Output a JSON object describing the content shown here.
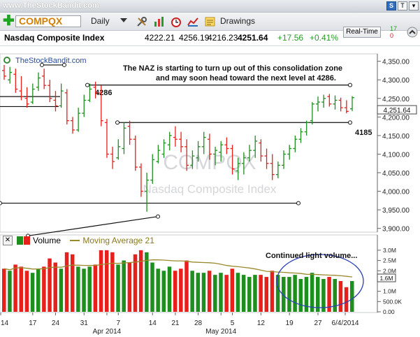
{
  "watermark": "www.TheStockBandit.com",
  "header_buttons": [
    "S",
    "T",
    "▾"
  ],
  "toolbar": {
    "symbol": "COMPQX",
    "period": "Daily",
    "drawings_label": "Drawings",
    "realtime_label": "Real-Time",
    "side_counts": [
      "17",
      "0"
    ]
  },
  "quote": {
    "name": "Nasdaq Composite Index",
    "open": "4222.21",
    "high": "4256.19",
    "low": "4216.23",
    "last": "4251.64",
    "change": "+17.56",
    "change_pct": "+0.41%"
  },
  "main_chart": {
    "source_label": "TheStockBandit.com",
    "annotation_line1": "The NAZ is starting to turn up out of this consolidation zone",
    "annotation_line2": "and may soon head toward the next level at 4286.",
    "level_upper_label": "4286",
    "level_lower_label": "4185",
    "price_tag": "4,251.64",
    "watermark_symbol": "COMPQX",
    "watermark_name": "Nasdaq Composite Index",
    "y_ticks": [
      "4,350.00",
      "4,300.00",
      "4,250.00",
      "4,200.00",
      "4,150.00",
      "4,100.00",
      "4,050.00",
      "4,000.00",
      "3,950.00",
      "3,900.00"
    ]
  },
  "volume_panel": {
    "title": "Volume",
    "ma_label": "Moving Average 21",
    "annotation": "Continued light volume...",
    "y_ticks": [
      "3.0M",
      "2.5M",
      "2.0M",
      "1.6M",
      "1.0M",
      "500.0K",
      "0.00"
    ],
    "highlight_tag": "1.6M",
    "colors": {
      "up": "#1e8f1e",
      "down": "#e8201c",
      "ma": "#9a8a2c",
      "circle": "#2c3fb8"
    }
  },
  "x_axis": {
    "labels": [
      "14",
      "17",
      "24",
      "31",
      "Apr 2014",
      "7",
      "14",
      "21",
      "28",
      "May 2014",
      "5",
      "12",
      "19",
      "27",
      "6/4/2014"
    ]
  },
  "chart_data": {
    "type": "ohlc",
    "y_range": [
      3890,
      4370
    ],
    "volume_range_millions": [
      0,
      3.2
    ],
    "bars": [
      {
        "h": 4340,
        "l": 4300,
        "o": 4325,
        "c": 4310,
        "v": 2.1,
        "up": false
      },
      {
        "h": 4335,
        "l": 4290,
        "o": 4300,
        "c": 4320,
        "v": 2.0,
        "up": true
      },
      {
        "h": 4330,
        "l": 4265,
        "o": 4315,
        "c": 4275,
        "v": 2.3,
        "up": false
      },
      {
        "h": 4310,
        "l": 4245,
        "o": 4270,
        "c": 4255,
        "v": 2.2,
        "up": false
      },
      {
        "h": 4280,
        "l": 4225,
        "o": 4250,
        "c": 4235,
        "v": 2.0,
        "up": false
      },
      {
        "h": 4290,
        "l": 4235,
        "o": 4240,
        "c": 4275,
        "v": 1.9,
        "up": true
      },
      {
        "h": 4320,
        "l": 4270,
        "o": 4280,
        "c": 4305,
        "v": 2.1,
        "up": true
      },
      {
        "h": 4330,
        "l": 4275,
        "o": 4310,
        "c": 4285,
        "v": 2.2,
        "up": false
      },
      {
        "h": 4300,
        "l": 4240,
        "o": 4285,
        "c": 4250,
        "v": 2.6,
        "up": false
      },
      {
        "h": 4270,
        "l": 4215,
        "o": 4245,
        "c": 4230,
        "v": 2.4,
        "up": false
      },
      {
        "h": 4290,
        "l": 4225,
        "o": 4230,
        "c": 4270,
        "v": 2.1,
        "up": true
      },
      {
        "h": 4275,
        "l": 4180,
        "o": 4265,
        "c": 4190,
        "v": 2.9,
        "up": false
      },
      {
        "h": 4200,
        "l": 4155,
        "o": 4190,
        "c": 4165,
        "v": 2.8,
        "up": false
      },
      {
        "h": 4225,
        "l": 4160,
        "o": 4165,
        "c": 4210,
        "v": 2.2,
        "up": true
      },
      {
        "h": 4260,
        "l": 4200,
        "o": 4210,
        "c": 4245,
        "v": 2.1,
        "up": true
      },
      {
        "h": 4290,
        "l": 4240,
        "o": 4245,
        "c": 4275,
        "v": 2.2,
        "up": true
      },
      {
        "h": 4295,
        "l": 4250,
        "o": 4280,
        "c": 4265,
        "v": 2.3,
        "up": false
      },
      {
        "h": 4285,
        "l": 4175,
        "o": 4265,
        "c": 4190,
        "v": 3.0,
        "up": false
      },
      {
        "h": 4195,
        "l": 4090,
        "o": 4185,
        "c": 4100,
        "v": 3.0,
        "up": false
      },
      {
        "h": 4120,
        "l": 4060,
        "o": 4100,
        "c": 4080,
        "v": 2.9,
        "up": false
      },
      {
        "h": 4140,
        "l": 4085,
        "o": 4090,
        "c": 4120,
        "v": 2.3,
        "up": true
      },
      {
        "h": 4185,
        "l": 4100,
        "o": 4115,
        "c": 4170,
        "v": 2.5,
        "up": true
      },
      {
        "h": 4190,
        "l": 4125,
        "o": 4175,
        "c": 4140,
        "v": 2.4,
        "up": false
      },
      {
        "h": 4150,
        "l": 4055,
        "o": 4140,
        "c": 4065,
        "v": 2.8,
        "up": false
      },
      {
        "h": 4075,
        "l": 3985,
        "o": 4065,
        "c": 4000,
        "v": 3.0,
        "up": false
      },
      {
        "h": 4050,
        "l": 3945,
        "o": 4000,
        "c": 4030,
        "v": 2.9,
        "up": true
      },
      {
        "h": 4100,
        "l": 4020,
        "o": 4030,
        "c": 4085,
        "v": 2.4,
        "up": true
      },
      {
        "h": 4125,
        "l": 4075,
        "o": 4080,
        "c": 4110,
        "v": 2.1,
        "up": true
      },
      {
        "h": 4140,
        "l": 4090,
        "o": 4100,
        "c": 4130,
        "v": 2.0,
        "up": true
      },
      {
        "h": 4160,
        "l": 4110,
        "o": 4125,
        "c": 4150,
        "v": 2.2,
        "up": true
      },
      {
        "h": 4175,
        "l": 4120,
        "o": 4145,
        "c": 4140,
        "v": 2.0,
        "up": false
      },
      {
        "h": 4160,
        "l": 4105,
        "o": 4140,
        "c": 4120,
        "v": 2.1,
        "up": false
      },
      {
        "h": 4140,
        "l": 4055,
        "o": 4120,
        "c": 4070,
        "v": 2.5,
        "up": false
      },
      {
        "h": 4110,
        "l": 4060,
        "o": 4070,
        "c": 4095,
        "v": 2.0,
        "up": true
      },
      {
        "h": 4135,
        "l": 4080,
        "o": 4090,
        "c": 4120,
        "v": 1.9,
        "up": true
      },
      {
        "h": 4160,
        "l": 4100,
        "o": 4120,
        "c": 4145,
        "v": 1.9,
        "up": true
      },
      {
        "h": 4155,
        "l": 4085,
        "o": 4140,
        "c": 4100,
        "v": 2.0,
        "up": false
      },
      {
        "h": 4120,
        "l": 4070,
        "o": 4100,
        "c": 4110,
        "v": 1.8,
        "up": true
      },
      {
        "h": 4135,
        "l": 4080,
        "o": 4105,
        "c": 4125,
        "v": 1.9,
        "up": true
      },
      {
        "h": 4145,
        "l": 4100,
        "o": 4125,
        "c": 4115,
        "v": 1.8,
        "up": false
      },
      {
        "h": 4125,
        "l": 4045,
        "o": 4115,
        "c": 4060,
        "v": 2.1,
        "up": false
      },
      {
        "h": 4090,
        "l": 4030,
        "o": 4055,
        "c": 4075,
        "v": 1.9,
        "up": true
      },
      {
        "h": 4105,
        "l": 4045,
        "o": 4075,
        "c": 4090,
        "v": 1.8,
        "up": true
      },
      {
        "h": 4125,
        "l": 4080,
        "o": 4090,
        "c": 4110,
        "v": 1.7,
        "up": true
      },
      {
        "h": 4150,
        "l": 4090,
        "o": 4110,
        "c": 4135,
        "v": 1.8,
        "up": true
      },
      {
        "h": 4140,
        "l": 4080,
        "o": 4130,
        "c": 4095,
        "v": 1.8,
        "up": false
      },
      {
        "h": 4115,
        "l": 4060,
        "o": 4095,
        "c": 4075,
        "v": 1.7,
        "up": false
      },
      {
        "h": 4100,
        "l": 4030,
        "o": 4075,
        "c": 4045,
        "v": 2.0,
        "up": false
      },
      {
        "h": 4080,
        "l": 4035,
        "o": 4045,
        "c": 4070,
        "v": 1.8,
        "up": true
      },
      {
        "h": 4110,
        "l": 4060,
        "o": 4070,
        "c": 4100,
        "v": 1.7,
        "up": true
      },
      {
        "h": 4125,
        "l": 4085,
        "o": 4100,
        "c": 4115,
        "v": 1.7,
        "up": true
      },
      {
        "h": 4150,
        "l": 4105,
        "o": 4115,
        "c": 4140,
        "v": 1.8,
        "up": true
      },
      {
        "h": 4170,
        "l": 4130,
        "o": 4140,
        "c": 4160,
        "v": 1.6,
        "up": true
      },
      {
        "h": 4190,
        "l": 4150,
        "o": 4160,
        "c": 4185,
        "v": 1.7,
        "up": true
      },
      {
        "h": 4240,
        "l": 4180,
        "o": 4190,
        "c": 4235,
        "v": 1.9,
        "up": true
      },
      {
        "h": 4255,
        "l": 4215,
        "o": 4235,
        "c": 4240,
        "v": 1.7,
        "up": true
      },
      {
        "h": 4260,
        "l": 4225,
        "o": 4240,
        "c": 4250,
        "v": 1.6,
        "up": true
      },
      {
        "h": 4262,
        "l": 4228,
        "o": 4255,
        "c": 4235,
        "v": 1.7,
        "up": false
      },
      {
        "h": 4258,
        "l": 4220,
        "o": 4235,
        "c": 4245,
        "v": 1.6,
        "up": true
      },
      {
        "h": 4252,
        "l": 4215,
        "o": 4245,
        "c": 4225,
        "v": 1.5,
        "up": false
      },
      {
        "h": 4245,
        "l": 4210,
        "o": 4225,
        "c": 4215,
        "v": 1.2,
        "up": false
      },
      {
        "h": 4256,
        "l": 4216,
        "o": 4222,
        "c": 4252,
        "v": 1.5,
        "up": true
      }
    ]
  }
}
